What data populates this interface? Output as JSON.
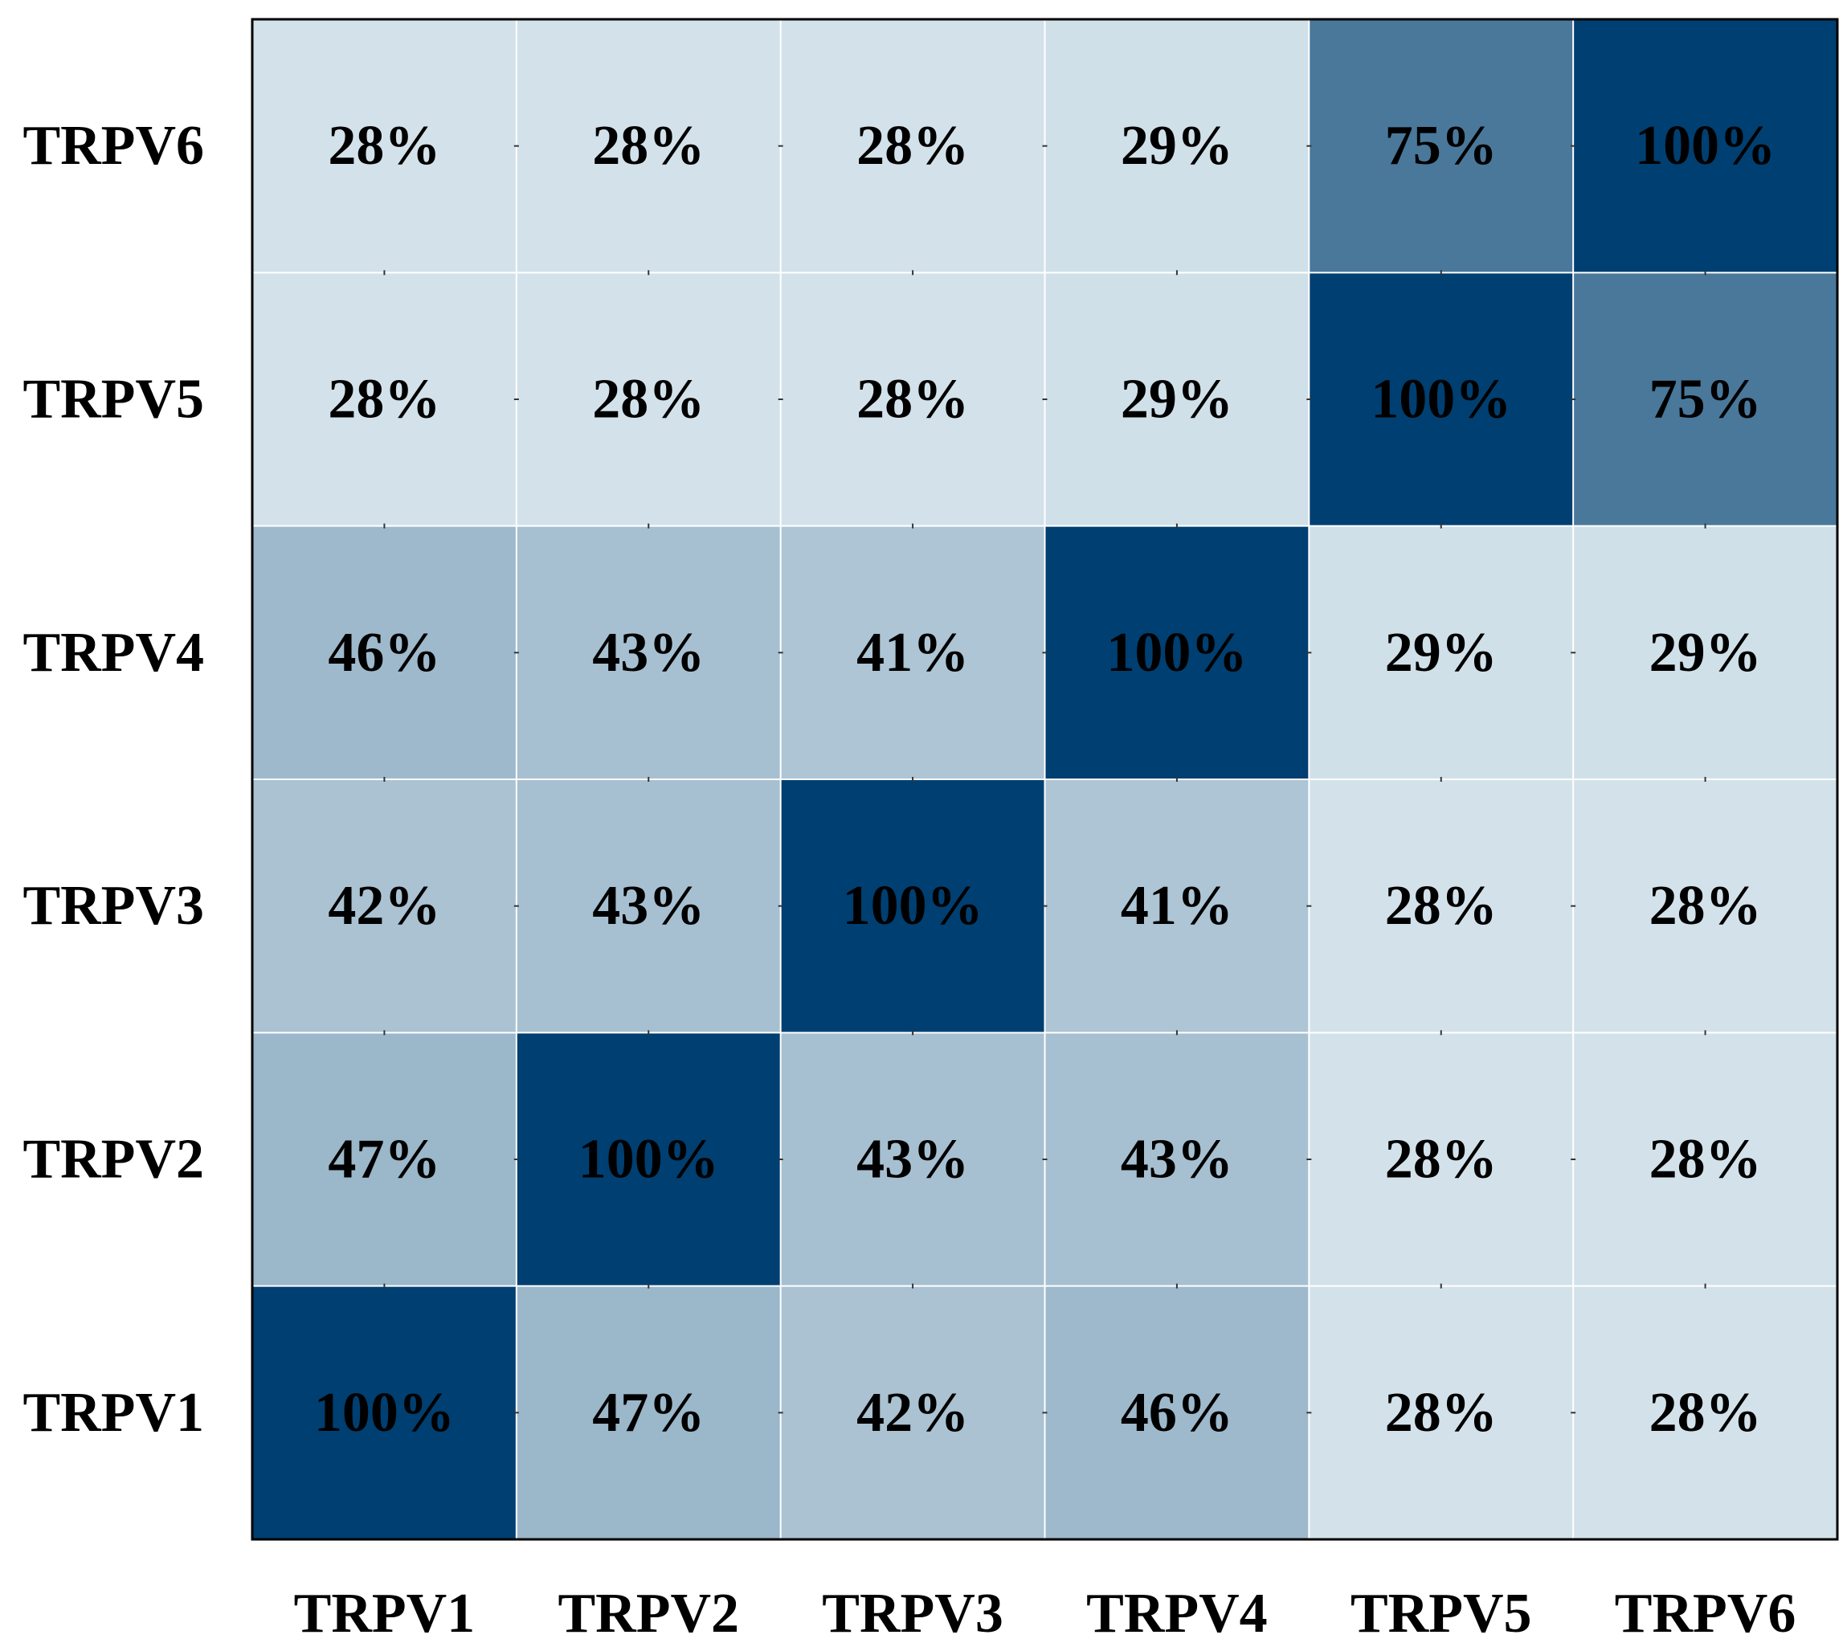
{
  "chart_data": {
    "type": "heatmap",
    "title": "",
    "xlabel": "",
    "ylabel": "",
    "x_categories": [
      "TRPV1",
      "TRPV2",
      "TRPV3",
      "TRPV4",
      "TRPV5",
      "TRPV6"
    ],
    "y_categories": [
      "TRPV1",
      "TRPV2",
      "TRPV3",
      "TRPV4",
      "TRPV5",
      "TRPV6"
    ],
    "y_order": "bottom-to-top",
    "value_format": "percent",
    "values": [
      [
        100,
        47,
        42,
        46,
        28,
        28
      ],
      [
        47,
        100,
        43,
        43,
        28,
        28
      ],
      [
        42,
        43,
        100,
        41,
        28,
        28
      ],
      [
        46,
        43,
        41,
        100,
        29,
        29
      ],
      [
        28,
        28,
        28,
        29,
        100,
        75
      ],
      [
        28,
        28,
        28,
        29,
        75,
        100
      ]
    ],
    "color_scale": {
      "low_value": 28,
      "high_value": 100,
      "low_color": "#d3e2ea",
      "high_color": "#003f71"
    },
    "grid": true,
    "legend": "none"
  }
}
